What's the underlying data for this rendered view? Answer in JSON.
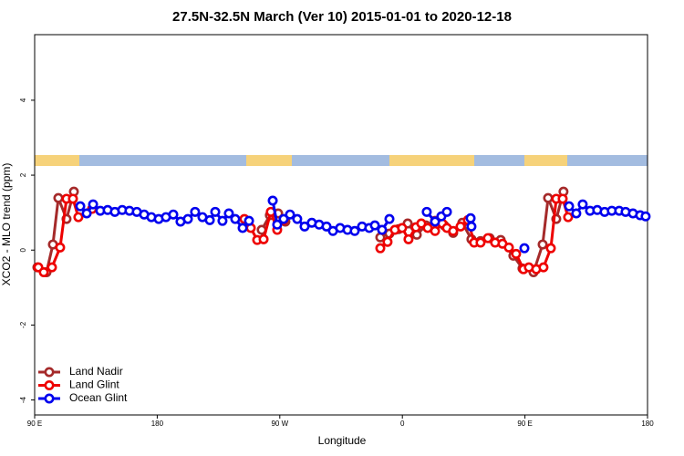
{
  "chart_data": {
    "type": "line",
    "title": "27.5N-32.5N March (Ver 10)   2015-01-01 to 2020-12-18",
    "x_label": "Longitude",
    "y_label": "XCO2 - MLO trend (ppm)",
    "xlim": [
      90,
      540
    ],
    "ylim": [
      -4.4,
      5.75
    ],
    "xticks": [
      {
        "value": 90,
        "label": "90 E"
      },
      180,
      {
        "value": 270,
        "label": "90 W"
      },
      {
        "value": 360,
        "label": "0"
      },
      {
        "value": 450,
        "label": "90 E"
      },
      {
        "value": 540,
        "label": "180"
      }
    ],
    "yticks": [
      -4,
      -2,
      0,
      2,
      4
    ],
    "legend": "bottom-left",
    "series": [
      {
        "name": "Land Nadir",
        "color": "#a52a2a",
        "x": [
          92.0,
          98.7,
          103.4,
          107.4,
          113.4,
          118.8,
          null,
          256.7,
          262.7,
          268.8,
          274.1,
          null,
          343.8,
          350.5,
          357.2,
          363.9,
          370.6,
          377.3,
          384.0,
          390.7,
          397.3,
          404.0,
          410.7,
          417.4,
          424.1,
          432.2,
          441.5,
          448.2,
          456.3,
          463.0,
          467.0,
          473.0,
          478.3
        ],
        "values": [
          -0.46,
          -0.59,
          0.15,
          1.39,
          0.83,
          1.56,
          null,
          0.54,
          0.93,
          0.98,
          0.76,
          null,
          0.34,
          0.44,
          0.56,
          0.71,
          0.41,
          0.66,
          0.78,
          0.66,
          0.46,
          0.73,
          0.29,
          0.24,
          0.32,
          0.27,
          -0.15,
          -0.49,
          -0.59,
          0.15,
          1.39,
          0.83,
          1.56
        ]
      },
      {
        "name": "Land Glint",
        "color": "#ee0000",
        "x": [
          92.7,
          96.7,
          102.7,
          108.7,
          113.4,
          118.1,
          122.1,
          132.2,
          null,
          244.0,
          248.7,
          253.4,
          258.1,
          263.4,
          268.1,
          272.8,
          null,
          343.8,
          349.1,
          354.5,
          359.8,
          364.5,
          369.9,
          373.9,
          378.6,
          384.0,
          389.3,
          392.7,
          397.3,
          402.7,
          408.1,
          412.7,
          417.4,
          422.8,
          428.1,
          433.5,
          438.2,
          443.5,
          448.9,
          452.9,
          458.3,
          463.6,
          469.0,
          473.0,
          477.7,
          481.7
        ],
        "values": [
          -0.46,
          -0.59,
          -0.46,
          0.07,
          1.37,
          1.37,
          0.88,
          1.1,
          null,
          0.83,
          0.59,
          0.27,
          0.29,
          1.02,
          0.54,
          0.8,
          null,
          0.05,
          0.22,
          0.54,
          0.59,
          0.29,
          0.61,
          0.71,
          0.59,
          0.51,
          0.71,
          0.59,
          0.51,
          0.63,
          0.8,
          0.2,
          0.2,
          0.32,
          0.2,
          0.17,
          0.07,
          -0.1,
          -0.51,
          -0.46,
          -0.51,
          -0.46,
          0.05,
          1.37,
          1.37,
          0.88
        ]
      },
      {
        "name": "Ocean Glint",
        "color": "#0000ee",
        "x": [
          123.5,
          128.2,
          132.9,
          138.2,
          143.6,
          148.9,
          154.3,
          159.6,
          165.0,
          170.4,
          175.7,
          181.1,
          186.4,
          191.8,
          197.1,
          202.5,
          207.8,
          213.2,
          218.6,
          222.6,
          227.9,
          232.6,
          237.3,
          242.7,
          247.4,
          null,
          264.8,
          268.1,
          272.8,
          277.5,
          282.8,
          288.2,
          293.5,
          298.9,
          304.3,
          309.0,
          314.3,
          319.7,
          325.0,
          330.4,
          335.7,
          339.8,
          345.1,
          350.5,
          null,
          377.9,
          384.0,
          388.6,
          392.7,
          null,
          410.1,
          410.7,
          null,
          449.6,
          null,
          482.4,
          487.7,
          492.4,
          497.8,
          503.1,
          508.5,
          513.8,
          519.2,
          523.9,
          529.3,
          534.6,
          538.6
        ],
        "values": [
          1.17,
          0.98,
          1.22,
          1.05,
          1.07,
          1.02,
          1.07,
          1.05,
          1.02,
          0.95,
          0.88,
          0.83,
          0.88,
          0.95,
          0.76,
          0.83,
          1.02,
          0.88,
          0.8,
          1.02,
          0.78,
          0.98,
          0.83,
          0.59,
          0.78,
          null,
          1.32,
          0.68,
          0.83,
          0.95,
          0.83,
          0.63,
          0.73,
          0.68,
          0.63,
          0.51,
          0.59,
          0.54,
          0.51,
          0.63,
          0.59,
          0.66,
          0.54,
          0.83,
          null,
          1.02,
          0.76,
          0.9,
          1.02,
          null,
          0.85,
          0.63,
          null,
          0.05,
          null,
          1.17,
          0.98,
          1.22,
          1.05,
          1.07,
          1.02,
          1.05,
          1.05,
          1.02,
          0.98,
          0.93,
          0.9
        ]
      }
    ]
  }
}
